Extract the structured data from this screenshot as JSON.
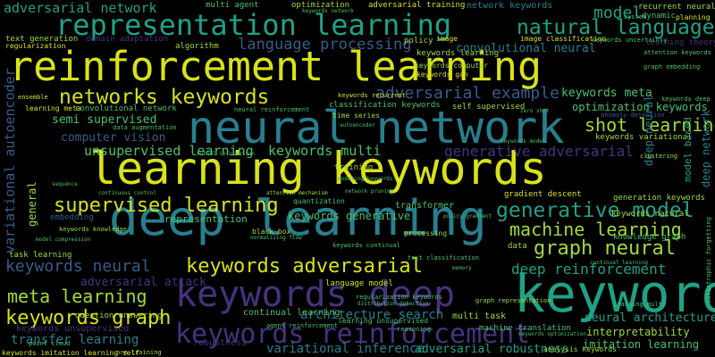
{
  "colors": {
    "background": "#000000",
    "yellow": "#d8e219",
    "lime": "#a0da39",
    "green": "#4ac16d",
    "teal": "#1fa187",
    "cyan": "#277f8e",
    "blue": "#365c8d",
    "indigo": "#46327e",
    "purple": "#440154"
  },
  "words": {
    "reinforcement_learning": "reinforcement learning",
    "learning_keywords": "learning keywords",
    "deep_learning": "deep learning",
    "neural_network": "neural network",
    "keyword": "keyword",
    "representation_learning": "representation learning",
    "keywords_deep": "keywords deep",
    "keywords_reinforcement": "keywords reinforcement",
    "natural_language": "natural language",
    "networks_keywords": "networks keywords",
    "generative_model": "generative model",
    "keywords_adversarial": "keywords adversarial",
    "keywords_graph": "keywords graph",
    "supervised_learning": "supervised learning",
    "machine_learning": "machine learning",
    "graph_neural": "graph neural",
    "meta_learning": "meta learning",
    "keywords_neural": "keywords neural",
    "language_processing": "language processing",
    "adversarial_example": "adversarial example",
    "generative_adversarial": "generative adversarial",
    "shot_learning": "shot learning",
    "deep_reinforcement": "deep reinforcement",
    "unsupervised_learning": "unsupervised learning",
    "keywords_multi": "keywords multi",
    "variational_autoencoder": "variational autoencoder",
    "adversarial_network": "adversarial network",
    "model": "model",
    "transfer_learning": "transfer learning",
    "architecture_search": "architecture search",
    "variational_inference": "variational inference",
    "adversarial_robustness": "adversarial robustness",
    "computer_vision": "computer vision",
    "convolutional_neural": "convolutional neural",
    "keywords_meta": "keywords meta",
    "adversarial_attack": "adversarial attack",
    "semi_supervised": "semi supervised",
    "optimization_keywords": "optimization keywords",
    "keywords_generative": "keywords generative",
    "representation": "representation",
    "neural_architecture": "neural architecture",
    "interpretability": "interpretability",
    "imitation_learning": "imitation learning",
    "continual_learning": "continual learning",
    "graph_neural_2": "graph neural",
    "text_generation": "text generation",
    "keywords_unsupervised": "keywords unsupervised",
    "robustness": "robustness",
    "transformer": "transformer",
    "multi_task": "multi task",
    "machine_translation": "machine translation",
    "keywords_imitation_learning_self": "keywords imitation learning self",
    "question_answering": "question answering",
    "language_model": "language model",
    "deep_neural": "deep neural",
    "multi_agent": "multi agent",
    "optimization": "optimization",
    "adversarial_training": "adversarial training",
    "network_keywords": "network keywords",
    "dynamic": "dynamic",
    "planning": "planning",
    "recurrent_neural": "recurrent neural",
    "learning_theory": "learning theory",
    "domain_adaptation": "domain adaptation",
    "algorithm": "algorithm",
    "policy": "policy",
    "image": "image",
    "regularization": "regularization",
    "production": "production",
    "keywords_learning": "keywords learning",
    "keywords_computer": "keywords computer",
    "keywords_gan": "keywords gan",
    "self_supervised": "self supervised",
    "classification_keywords": "classification keywords",
    "time_series": "time series",
    "anomaly_detection": "anomaly detection",
    "keywords_variational": "keywords variational",
    "keywords_recurrent": "keywords recurrent",
    "neural_reinforcement": "neural reinforcement",
    "data_augmentation": "data augmentation",
    "ensemble": "ensemble",
    "learning_meta": "learning meta",
    "autoencoder": "autoencoder",
    "gradient_descent": "gradient descent",
    "generation_keywords": "generation keywords",
    "keywords_natural": "keywords natural",
    "knowledge_graph": "knowledge graph",
    "training": "training",
    "data": "data",
    "model_based": "model based",
    "deep_network": "deep network",
    "embedding": "embedding",
    "task_learning": "task learning",
    "black_box": "black box",
    "quantization": "quantization",
    "attention_mechanism": "attention mechanism",
    "keywords_knowledge": "keywords knowledge",
    "model_compression": "model compression",
    "keywords_continual": "keywords continual",
    "text_classification": "text classification",
    "graph_embedding": "graph embedding",
    "clustering": "clustering",
    "processing": "processing",
    "point_cloud": "point cloud",
    "reasoning": "reasoning",
    "attention_keywords": "attention keywords",
    "image_classification": "image classification",
    "keywords_uncertainty": "keywords uncertainty",
    "system": "system",
    "keywords_network": "keywords network",
    "policy_gradient": "policy gradient",
    "network_pruning": "network pruning",
    "continuous_control": "continuous control",
    "regularization_keywords": "regularization keywords",
    "distribution_detection": "distribution detection",
    "general": "general",
    "keywords_deep_2": "keywords deep",
    "learning_multi": "learning multi",
    "analysis_keywords": "analysis keywords",
    "pre_training": "pre training",
    "graph_representation": "graph representation",
    "learning_unsupervised": "learning unsupervised",
    "agent_reinforcement": "agent reinforcement",
    "normalizing_flow": "normalizing flow",
    "mutual_information": "mutual information",
    "keywords_optimization": "keywords optimization",
    "convolutional_network": "convolutional network",
    "continual_learning_2": "continual learning",
    "zero_shot": "zero shot",
    "sequence": "sequence",
    "memory": "memory",
    "keywords_model": "keywords model",
    "catastrophic_forgetting": "catastrophic forgetting",
    "modeling_keywords": "modeling keywords"
  }
}
